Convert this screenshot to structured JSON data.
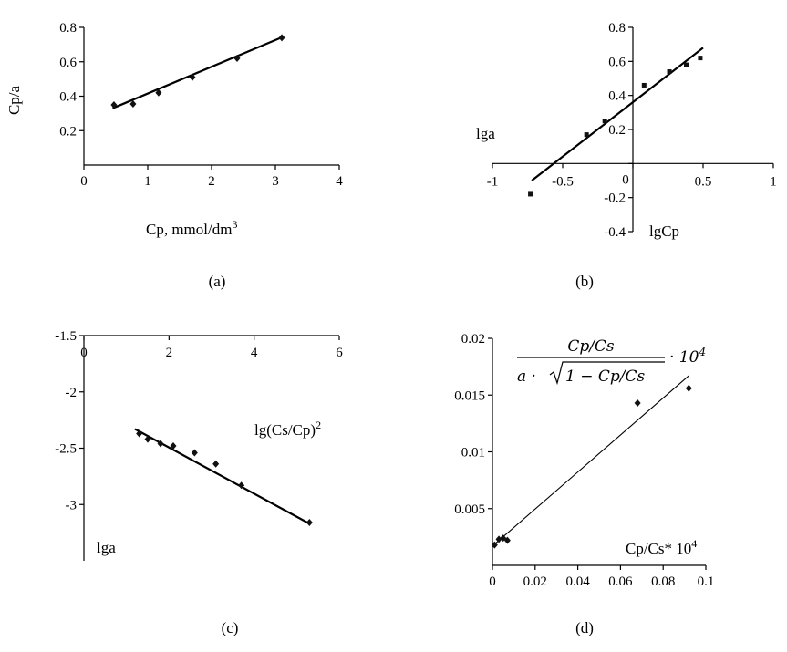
{
  "charts": {
    "a": {
      "caption": "(a)",
      "chart_data": {
        "type": "scatter",
        "xlabel": "Cp, mmol/dm",
        "xlabel_sup": "3",
        "ylabel": "Cp/a",
        "xlim": [
          0,
          4
        ],
        "ylim": [
          0,
          0.8
        ],
        "x_ticks": [
          "0",
          "1",
          "2",
          "3",
          "4"
        ],
        "y_ticks": [
          "0.2",
          "0.4",
          "0.6",
          "0.8"
        ],
        "x": [
          0.47,
          0.77,
          1.17,
          1.7,
          2.4,
          3.1
        ],
        "y": [
          0.35,
          0.355,
          0.42,
          0.51,
          0.62,
          0.74
        ],
        "fit": [
          [
            0.45,
            0.33
          ],
          [
            3.12,
            0.745
          ]
        ]
      }
    },
    "b": {
      "caption": "(b)",
      "chart_data": {
        "type": "scatter",
        "xlabel": "lgCp",
        "ylabel": "lga",
        "xlim": [
          -1,
          1
        ],
        "ylim": [
          -0.4,
          0.8
        ],
        "x_ticks": [
          "-1",
          "-0.5",
          "0",
          "0.5",
          "1"
        ],
        "y_ticks": [
          "-0.4",
          "-0.2",
          "0",
          "0.2",
          "0.4",
          "0.6",
          "0.8"
        ],
        "x": [
          -0.73,
          -0.33,
          -0.2,
          0.08,
          0.26,
          0.38,
          0.48
        ],
        "y": [
          -0.18,
          0.17,
          0.25,
          0.46,
          0.54,
          0.58,
          0.62
        ],
        "fit": [
          [
            -0.72,
            -0.1
          ],
          [
            0.5,
            0.68
          ]
        ]
      }
    },
    "c": {
      "caption": "(c)",
      "chart_data": {
        "type": "scatter",
        "xlabel": "lg(Cs/Cp)",
        "xlabel_sup": "2",
        "ylabel": "lga",
        "xlim": [
          0,
          6
        ],
        "ylim": [
          -3.5,
          -1.5
        ],
        "x_ticks": [
          "0",
          "2",
          "4",
          "6"
        ],
        "y_ticks": [
          "-1.5",
          "-2",
          "-2.5",
          "-3"
        ],
        "x": [
          1.3,
          1.5,
          1.8,
          2.1,
          2.6,
          3.1,
          3.7,
          5.3
        ],
        "y": [
          -2.37,
          -2.42,
          -2.46,
          -2.48,
          -2.54,
          -2.64,
          -2.83,
          -3.16
        ],
        "fit": [
          [
            1.2,
            -2.33
          ],
          [
            5.3,
            -3.17
          ]
        ]
      }
    },
    "d": {
      "caption": "(d)",
      "chart_data": {
        "type": "scatter",
        "xlabel": "Cp/Cs* 10",
        "xlabel_sup": "4",
        "xlim": [
          0,
          0.1
        ],
        "ylim": [
          0,
          0.02
        ],
        "x_ticks": [
          "0",
          "0.02",
          "0.04",
          "0.06",
          "0.08",
          "0.1"
        ],
        "y_ticks": [
          "0.005",
          "0.01",
          "0.015",
          "0.02"
        ],
        "x": [
          0.001,
          0.003,
          0.005,
          0.007,
          0.068,
          0.092
        ],
        "y": [
          0.0018,
          0.0023,
          0.0024,
          0.0022,
          0.0143,
          0.0156
        ],
        "fit": [
          [
            0.0,
            0.0017
          ],
          [
            0.092,
            0.0167
          ]
        ],
        "formula": {
          "numerator": "Cp/Cs",
          "denominator_a": "a ·",
          "denominator_rest": "1 − Cp/Cs",
          "multiplier": "· 10",
          "multiplier_sup": "4"
        }
      }
    }
  }
}
